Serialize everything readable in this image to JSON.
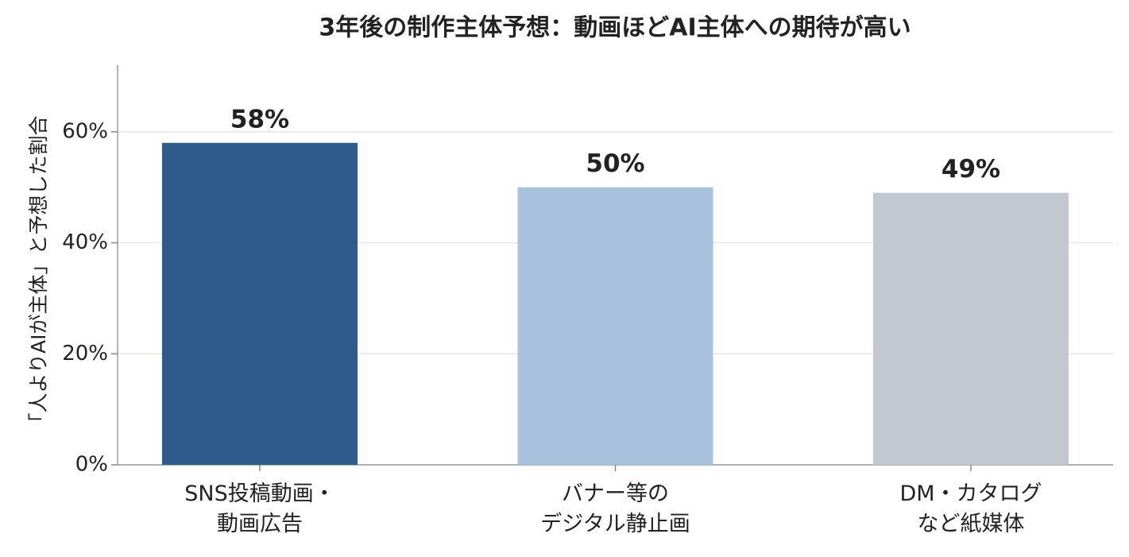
{
  "chart_data": {
    "type": "bar",
    "title": "3年後の制作主体予想：動画ほどAI主体への期待が高い",
    "y_label": "「人よりAIが主体」と予想した割合",
    "categories": [
      "SNS投稿動画・\n動画広告",
      "バナー等の\nデジタル静止画",
      "DM・カタログ\nなど紙媒体"
    ],
    "values": [
      58,
      50,
      49
    ],
    "value_labels": [
      "58%",
      "50%",
      "49%"
    ],
    "colors": [
      "#2e5b8a",
      "#a9c2dd",
      "#c3c8d0"
    ],
    "ylim": [
      0,
      72
    ],
    "yticks": [
      {
        "value": 0,
        "label": "0%"
      },
      {
        "value": 20,
        "label": "20%"
      },
      {
        "value": 40,
        "label": "40%"
      },
      {
        "value": 60,
        "label": "60%"
      }
    ],
    "grid": true
  }
}
